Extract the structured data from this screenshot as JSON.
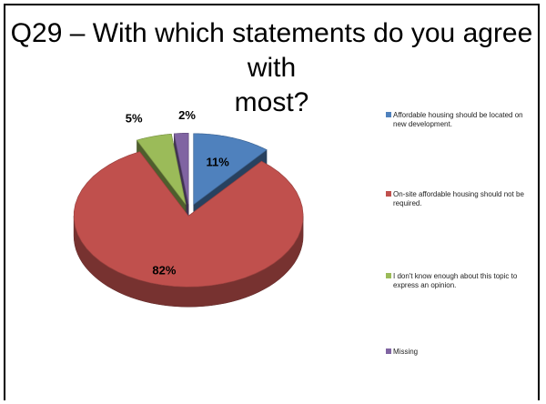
{
  "slide": {
    "title_line1": "Q29 – With which statements do you agree with",
    "title_line2": "most?"
  },
  "chart_data": {
    "type": "pie",
    "title": "Q29 – With which statements do you agree with most?",
    "categories": [
      "Affordable housing should be located on new development.",
      "On-site affordable housing should not be required.",
      "I don't know enough about this topic to express an opinion.",
      "Missing"
    ],
    "values": [
      11,
      82,
      5,
      2
    ],
    "data_labels": [
      "11%",
      "82%",
      "5%",
      "2%"
    ],
    "colors": [
      "#4F81BD",
      "#C0504D",
      "#9BBB59",
      "#8064A2"
    ],
    "style": "3d-exploded",
    "legend": "right"
  }
}
